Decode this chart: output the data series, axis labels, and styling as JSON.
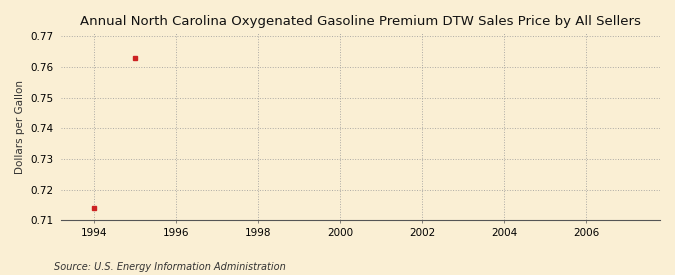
{
  "title": "Annual North Carolina Oxygenated Gasoline Premium DTW Sales Price by All Sellers",
  "ylabel": "Dollars per Gallon",
  "source": "Source: U.S. Energy Information Administration",
  "x_data": [
    1994,
    1995
  ],
  "y_data": [
    0.714,
    0.763
  ],
  "marker_color": "#cc2222",
  "marker": "s",
  "marker_size": 3,
  "xlim": [
    1993.2,
    2007.8
  ],
  "ylim": [
    0.71,
    0.771
  ],
  "xticks": [
    1994,
    1996,
    1998,
    2000,
    2002,
    2004,
    2006
  ],
  "yticks": [
    0.71,
    0.72,
    0.73,
    0.74,
    0.75,
    0.76,
    0.77
  ],
  "background_color": "#faefd4",
  "grid_color": "#999999",
  "title_fontsize": 9.5,
  "label_fontsize": 7.5,
  "tick_fontsize": 7.5,
  "source_fontsize": 7
}
